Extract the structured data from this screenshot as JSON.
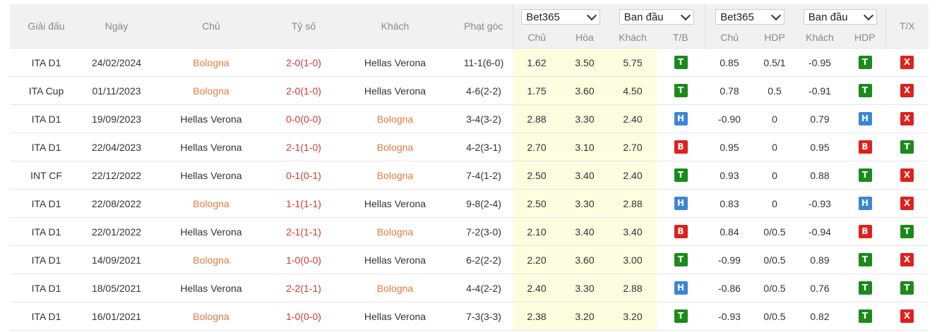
{
  "header": {
    "league": "Giải đấu",
    "date": "Ngày",
    "home": "Chủ",
    "score": "Tỷ số",
    "away": "Khách",
    "corner": "Phạt góc",
    "odds_group": {
      "bookmaker": "Bet365",
      "mode": "Ban đầu"
    },
    "hdp_group": {
      "bookmaker": "Bet365",
      "mode": "Ban đầu"
    },
    "tx": "T/X",
    "odds_cols": [
      "Chủ",
      "Hòa",
      "Khách",
      "T/B"
    ],
    "hdp_cols": [
      "Chủ",
      "HDP",
      "Khách",
      "HDP"
    ]
  },
  "colors": {
    "win": "#1a8a1a",
    "draw": "#3b86d6",
    "loss": "#e0201c",
    "over_under_x": "#e0201c",
    "highlight_team": "#e07a40",
    "score": "#d0393b"
  },
  "rows": [
    {
      "league": "ITA D1",
      "date": "24/02/2024",
      "home": "Bologna",
      "score": "2-0(1-0)",
      "away": "Hellas Verona",
      "corner": "11-1(6-0)",
      "o_home": "1.62",
      "o_draw": "3.50",
      "o_away": "5.75",
      "tb": "T",
      "h_home": "0.85",
      "hdp": "0.5/1",
      "h_away": "-0.95",
      "hdp_res": "T",
      "tx": "X",
      "hl": "home"
    },
    {
      "league": "ITA Cup",
      "date": "01/11/2023",
      "home": "Bologna",
      "score": "2-0(1-0)",
      "away": "Hellas Verona",
      "corner": "4-6(2-2)",
      "o_home": "1.75",
      "o_draw": "3.60",
      "o_away": "4.50",
      "tb": "T",
      "h_home": "0.78",
      "hdp": "0.5",
      "h_away": "-0.91",
      "hdp_res": "T",
      "tx": "X",
      "hl": "home"
    },
    {
      "league": "ITA D1",
      "date": "19/09/2023",
      "home": "Hellas Verona",
      "score": "0-0(0-0)",
      "away": "Bologna",
      "corner": "3-4(3-2)",
      "o_home": "2.88",
      "o_draw": "3.30",
      "o_away": "2.40",
      "tb": "H",
      "h_home": "-0.90",
      "hdp": "0",
      "h_away": "0.79",
      "hdp_res": "H",
      "tx": "X",
      "hl": "away"
    },
    {
      "league": "ITA D1",
      "date": "22/04/2023",
      "home": "Hellas Verona",
      "score": "2-1(1-0)",
      "away": "Bologna",
      "corner": "4-2(3-1)",
      "o_home": "2.70",
      "o_draw": "3.10",
      "o_away": "2.70",
      "tb": "B",
      "h_home": "0.95",
      "hdp": "0",
      "h_away": "0.95",
      "hdp_res": "B",
      "tx": "T",
      "hl": "away"
    },
    {
      "league": "INT CF",
      "date": "22/12/2022",
      "home": "Hellas Verona",
      "score": "0-1(0-1)",
      "away": "Bologna",
      "corner": "7-4(1-2)",
      "o_home": "2.50",
      "o_draw": "3.40",
      "o_away": "2.40",
      "tb": "T",
      "h_home": "0.93",
      "hdp": "0",
      "h_away": "0.88",
      "hdp_res": "T",
      "tx": "X",
      "hl": "away"
    },
    {
      "league": "ITA D1",
      "date": "22/08/2022",
      "home": "Bologna",
      "score": "1-1(1-1)",
      "away": "Hellas Verona",
      "corner": "9-8(2-4)",
      "o_home": "2.50",
      "o_draw": "3.30",
      "o_away": "2.88",
      "tb": "H",
      "h_home": "0.83",
      "hdp": "0",
      "h_away": "-0.93",
      "hdp_res": "H",
      "tx": "X",
      "hl": "home"
    },
    {
      "league": "ITA D1",
      "date": "22/01/2022",
      "home": "Hellas Verona",
      "score": "2-1(1-1)",
      "away": "Bologna",
      "corner": "7-2(3-0)",
      "o_home": "2.10",
      "o_draw": "3.40",
      "o_away": "3.40",
      "tb": "B",
      "h_home": "0.84",
      "hdp": "0/0.5",
      "h_away": "-0.94",
      "hdp_res": "B",
      "tx": "T",
      "hl": "away"
    },
    {
      "league": "ITA D1",
      "date": "14/09/2021",
      "home": "Bologna",
      "score": "1-0(0-0)",
      "away": "Hellas Verona",
      "corner": "6-2(2-2)",
      "o_home": "2.20",
      "o_draw": "3.60",
      "o_away": "3.00",
      "tb": "T",
      "h_home": "-0.99",
      "hdp": "0/0.5",
      "h_away": "0.89",
      "hdp_res": "T",
      "tx": "X",
      "hl": "home"
    },
    {
      "league": "ITA D1",
      "date": "18/05/2021",
      "home": "Hellas Verona",
      "score": "2-2(1-1)",
      "away": "Bologna",
      "corner": "4-4(2-2)",
      "o_home": "2.40",
      "o_draw": "3.30",
      "o_away": "2.88",
      "tb": "H",
      "h_home": "-0.86",
      "hdp": "0/0.5",
      "h_away": "0.76",
      "hdp_res": "T",
      "tx": "T",
      "hl": "away"
    },
    {
      "league": "ITA D1",
      "date": "16/01/2021",
      "home": "Bologna",
      "score": "1-0(0-0)",
      "away": "Hellas Verona",
      "corner": "7-3(3-3)",
      "o_home": "2.38",
      "o_draw": "3.20",
      "o_away": "3.20",
      "tb": "T",
      "h_home": "-0.93",
      "hdp": "0/0.5",
      "h_away": "0.82",
      "hdp_res": "T",
      "tx": "X",
      "hl": "home"
    }
  ]
}
